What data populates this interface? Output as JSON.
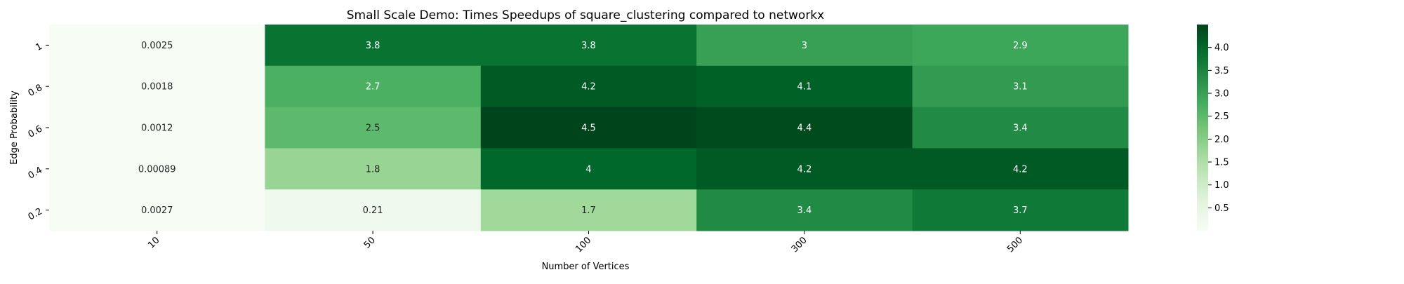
{
  "chart_data": {
    "type": "heatmap",
    "title": "Small Scale Demo: Times Speedups of square_clustering compared to networkx",
    "xlabel": "Number of Vertices",
    "ylabel": "Edge Probability",
    "x_categories": [
      "10",
      "50",
      "100",
      "300",
      "500"
    ],
    "y_categories": [
      "1",
      "0.8",
      "0.6",
      "0.4",
      "0.2"
    ],
    "values": [
      [
        0.0025,
        3.8,
        3.8,
        3,
        2.9
      ],
      [
        0.0018,
        2.7,
        4.2,
        4.1,
        3.1
      ],
      [
        0.0012,
        2.5,
        4.5,
        4.4,
        3.4
      ],
      [
        0.00089,
        1.8,
        4,
        4.2,
        4.2
      ],
      [
        0.0027,
        0.21,
        1.7,
        3.4,
        3.7
      ]
    ],
    "cell_labels": [
      [
        "0.0025",
        "3.8",
        "3.8",
        "3",
        "2.9"
      ],
      [
        "0.0018",
        "2.7",
        "4.2",
        "4.1",
        "3.1"
      ],
      [
        "0.0012",
        "2.5",
        "4.5",
        "4.4",
        "3.4"
      ],
      [
        "0.00089",
        "1.8",
        "4",
        "4.2",
        "4.2"
      ],
      [
        "0.0027",
        "0.21",
        "1.7",
        "3.4",
        "3.7"
      ]
    ],
    "colormap": "Greens",
    "color_range": [
      0.00089,
      4.5
    ],
    "colorbar_ticks": [
      "0.5",
      "1.0",
      "1.5",
      "2.0",
      "2.5",
      "3.0",
      "3.5",
      "4.0"
    ],
    "colorbar_tick_values": [
      0.5,
      1.0,
      1.5,
      2.0,
      2.5,
      3.0,
      3.5,
      4.0
    ],
    "grid": false,
    "legend": "colorbar-right"
  }
}
